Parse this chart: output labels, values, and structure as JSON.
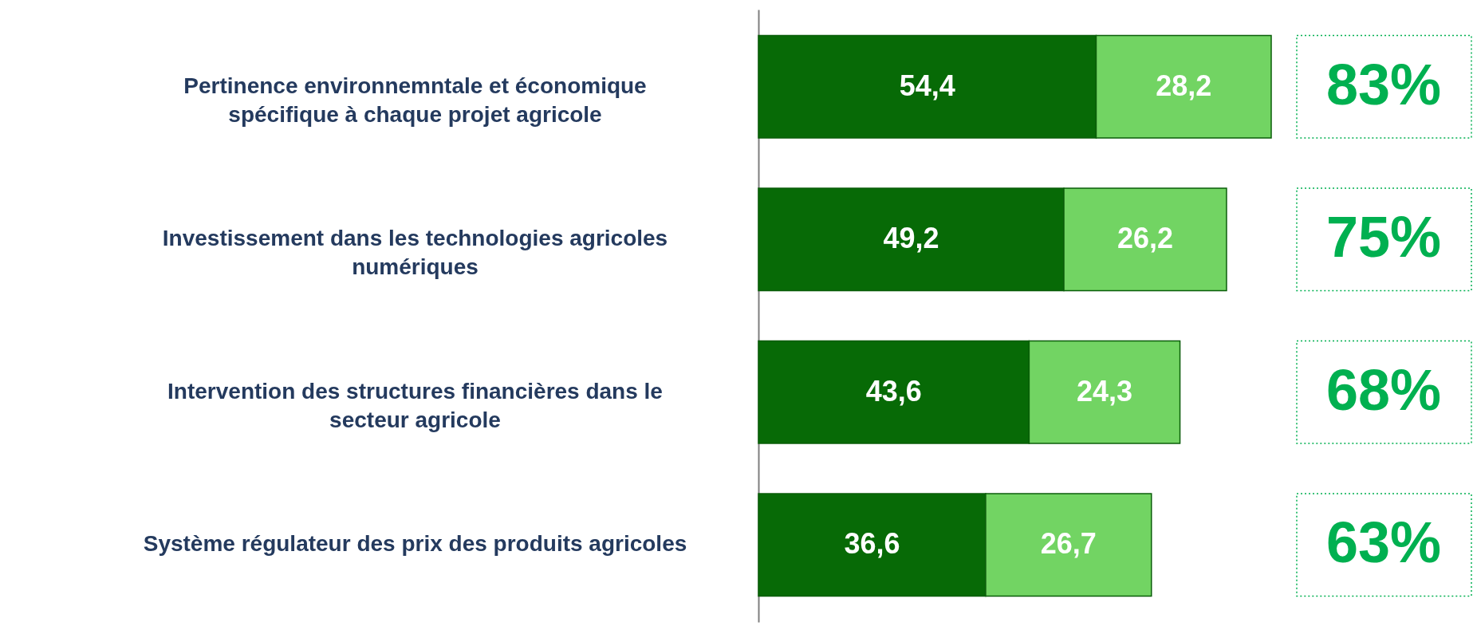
{
  "chart_data": {
    "type": "bar",
    "orientation": "horizontal",
    "stacked": true,
    "categories": [
      "Pertinence environnemntale et économique spécifique à chaque projet agricole",
      "Investissement dans les technologies agricoles numériques",
      "Intervention des structures financières dans le secteur agricole",
      "Système régulateur des prix des produits agricoles"
    ],
    "series": [
      {
        "color": "#076a06",
        "values": [
          54.4,
          49.2,
          43.6,
          36.6
        ],
        "value_labels": [
          "54,4",
          "49,2",
          "43,6",
          "36,6"
        ]
      },
      {
        "color": "#72d463",
        "values": [
          28.2,
          26.2,
          24.3,
          26.7
        ],
        "value_labels": [
          "28,2",
          "26,2",
          "24,3",
          "26,7"
        ]
      }
    ],
    "totals": [
      "83%",
      "75%",
      "68%",
      "63%"
    ]
  }
}
